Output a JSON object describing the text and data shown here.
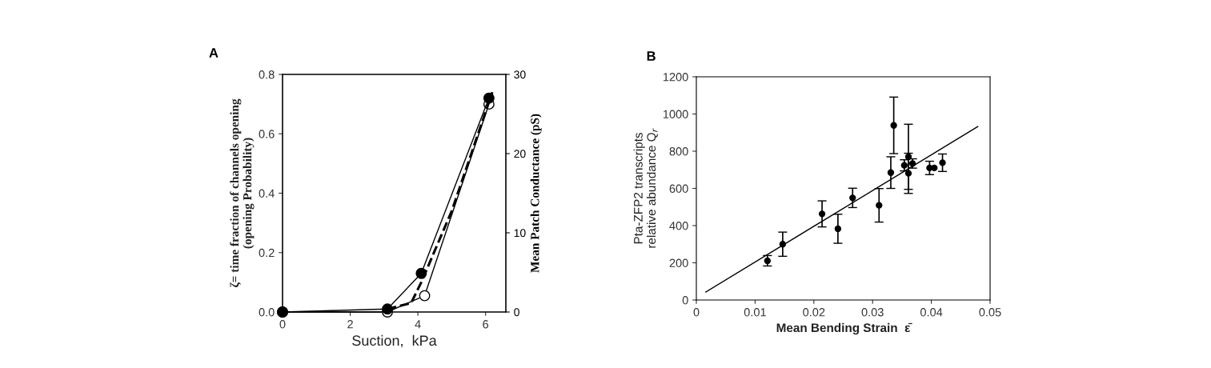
{
  "chart_data": [
    {
      "type": "line",
      "title": "A",
      "xlabel": "Suction,  kPa",
      "ylabel": "ζ= time fraction of channels opening\n(opening Probability)",
      "y2label": "Mean Patch Conductance (pS)",
      "xlim": [
        0,
        6.6
      ],
      "xticks": [
        0,
        2,
        4,
        6
      ],
      "ylim": [
        0,
        0.8
      ],
      "yticks": [
        {
          "value": 0,
          "label": "0.0"
        },
        0.2,
        0.4,
        0.6,
        0.8
      ],
      "y2lim": [
        0,
        30
      ],
      "y2ticks": [
        0,
        10,
        20,
        30
      ],
      "grid": false,
      "legend": false,
      "series": [
        {
          "color": "#000000",
          "x": [
            0,
            3.1,
            4.1,
            6.1
          ],
          "values": [
            0,
            0.01,
            0.13,
            0.72
          ],
          "marker": "circle",
          "line_style": "solid"
        },
        {
          "color": "#000000",
          "x": [
            0,
            3.1,
            4.2,
            6.1
          ],
          "values": [
            0,
            0.0,
            0.055,
            0.7
          ],
          "marker": "circle",
          "line_style": "solid"
        },
        {
          "color": "#000000",
          "x": [
            3.1,
            3.8,
            4.1,
            5.0,
            6.2
          ],
          "values": [
            0.01,
            0.03,
            0.1,
            0.34,
            0.74
          ],
          "marker": "none",
          "line_style": "dashed"
        }
      ]
    },
    {
      "type": "scatter",
      "title": "B",
      "xlabel": "Mean Bending Strain  ε̄",
      "ylabel": "Pta-ZFP2 transcripts\nrelative abundance Q$_{r}$",
      "xlim": [
        0,
        0.05
      ],
      "xticks": [
        0,
        0.01,
        0.02,
        0.03,
        0.04,
        0.05
      ],
      "ylim": [
        0,
        1200
      ],
      "yticks": [
        0,
        200,
        400,
        600,
        800,
        1000,
        1200
      ],
      "grid": false,
      "legend": false,
      "series": [
        {
          "color": "#000000",
          "marker": "circle",
          "x": [
            0.0121,
            0.0147,
            0.0214,
            0.0241,
            0.0266,
            0.0311,
            0.0331,
            0.0336,
            0.0361,
            0.0354,
            0.0368,
            0.0361,
            0.0397,
            0.0405,
            0.0419
          ],
          "values": [
            211,
            300,
            463,
            383,
            549,
            509,
            685,
            939,
            770,
            724,
            734,
            681,
            710,
            710,
            738
          ],
          "errors": [
            28,
            65,
            70,
            78,
            52,
            90,
            85,
            152,
            175,
            30,
            25,
            108,
            36,
            null,
            47
          ]
        },
        {
          "type": "line",
          "color": "#000000",
          "x": [
            0.0016,
            0.0479
          ],
          "values": [
            43,
            932
          ],
          "marker": "none",
          "line_style": "solid"
        }
      ]
    }
  ]
}
